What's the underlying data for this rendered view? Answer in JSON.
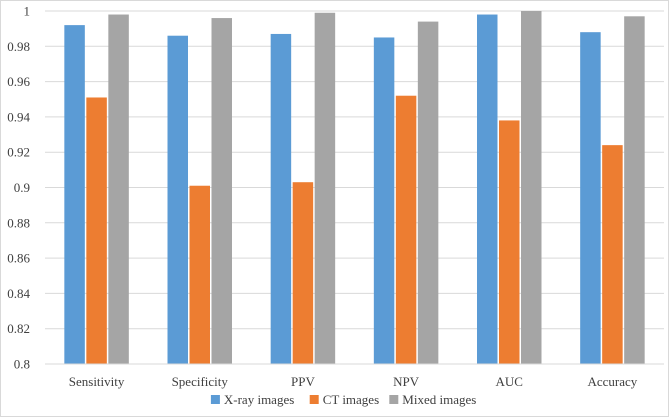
{
  "chart_data": {
    "type": "bar",
    "title": "",
    "xlabel": "",
    "ylabel": "",
    "categories": [
      "Sensitivity",
      "Specificity",
      "PPV",
      "NPV",
      "AUC",
      "Accuracy"
    ],
    "series": [
      {
        "name": "X-ray images",
        "color": "#5b9bd5",
        "values": [
          0.992,
          0.986,
          0.987,
          0.985,
          0.998,
          0.988
        ]
      },
      {
        "name": "CT images",
        "color": "#ed7d31",
        "values": [
          0.951,
          0.901,
          0.903,
          0.952,
          0.938,
          0.924
        ]
      },
      {
        "name": "Mixed images",
        "color": "#a5a5a5",
        "values": [
          0.998,
          0.996,
          0.999,
          0.994,
          1.0,
          0.997
        ]
      }
    ],
    "ylim": [
      0.8,
      1.0
    ],
    "yticks": [
      0.8,
      0.82,
      0.84,
      0.86,
      0.88,
      0.9,
      0.92,
      0.94,
      0.96,
      0.98,
      1
    ],
    "ytick_labels": [
      "0.8",
      "0.82",
      "0.84",
      "0.86",
      "0.88",
      "0.9",
      "0.92",
      "0.94",
      "0.96",
      "0.98",
      "1"
    ],
    "grid": true,
    "legend_position": "bottom"
  }
}
